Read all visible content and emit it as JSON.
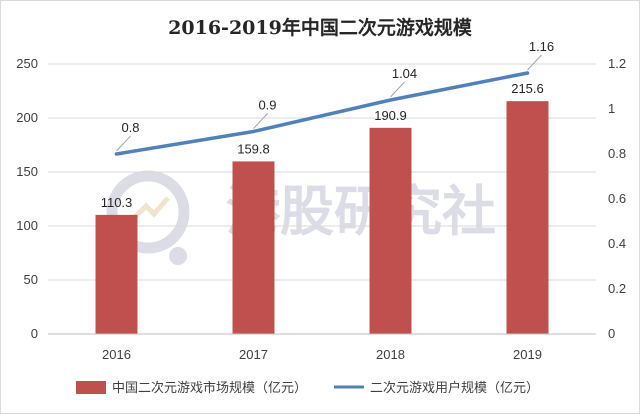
{
  "watermark": {
    "text": "港股研究社"
  },
  "chart_data": {
    "type": "bar+line",
    "title": "2016-2019年中国二次元游戏规模",
    "categories": [
      "2016",
      "2017",
      "2018",
      "2019"
    ],
    "series": [
      {
        "name": "中国二次元游戏市场规模（亿元）",
        "type": "bar",
        "axis": "left",
        "values": [
          110.3,
          159.8,
          190.9,
          215.6
        ],
        "labels": [
          "110.3",
          "159.8",
          "190.9",
          "215.6"
        ],
        "color": "#c0504d"
      },
      {
        "name": "二次元游戏用户规模（亿元）",
        "type": "line",
        "axis": "right",
        "values": [
          0.8,
          0.9,
          1.04,
          1.16
        ],
        "labels": [
          "0.8",
          "0.9",
          "1.04",
          "1.16"
        ],
        "color": "#4f81bd"
      }
    ],
    "y_left": {
      "min": 0,
      "max": 250,
      "ticks": [
        "0",
        "50",
        "100",
        "150",
        "200",
        "250"
      ]
    },
    "y_right": {
      "min": 0,
      "max": 1.2,
      "ticks": [
        "0",
        "0.2",
        "0.4",
        "0.6",
        "0.8",
        "1",
        "1.2"
      ]
    },
    "grid": true,
    "legend_position": "bottom"
  }
}
